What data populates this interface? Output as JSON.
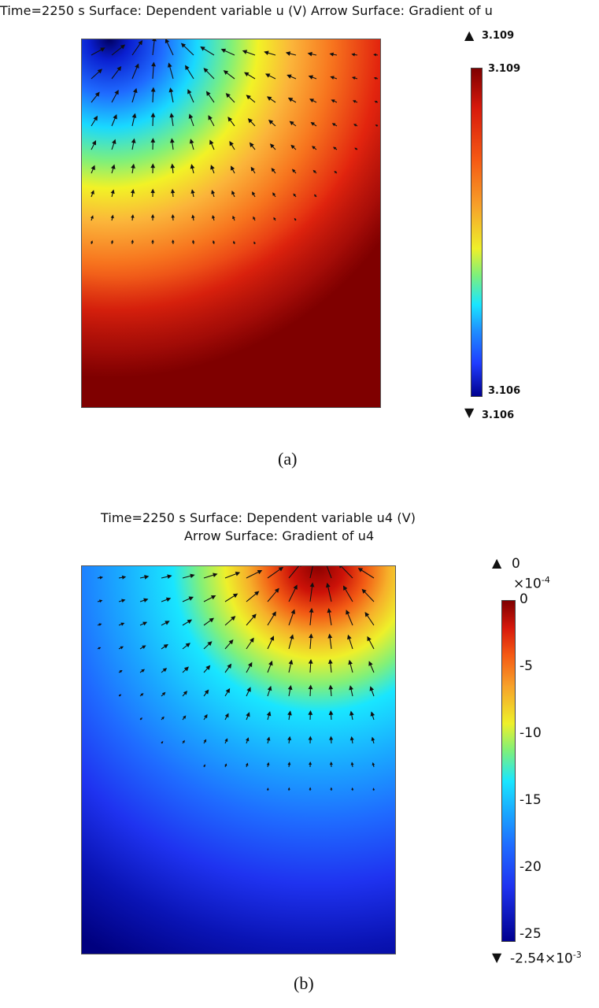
{
  "panel_a": {
    "title": "Time=2250 s   Surface: Dependent variable u (V)   Arrow Surface: Gradient of u",
    "caption": "(a)",
    "max_marker": "3.109",
    "min_marker": "3.106",
    "colorbar_top": "3.109",
    "colorbar_bottom": "3.106",
    "arrow_up_icon": "triangle-up",
    "arrow_down_icon": "triangle-down"
  },
  "panel_b": {
    "title_line1": "Time=2250 s   Surface: Dependent variable u4 (V)",
    "title_line2": "Arrow Surface: Gradient of u4",
    "caption": "(b)",
    "max_marker": "0",
    "multiplier": "×10",
    "multiplier_exp": "-4",
    "min_marker": "-2.54×10",
    "min_marker_exp": "-3",
    "colorbar_ticks": [
      "0",
      "-5",
      "-10",
      "-15",
      "-20",
      "-25"
    ]
  },
  "chart_data": [
    {
      "type": "heatmap",
      "title": "Time=2250 s   Surface: Dependent variable u (V)   Arrow Surface: Gradient of u",
      "colormap": "rainbow (blue→cyan→yellow→red→dark red)",
      "colorbar_range": [
        3.106,
        3.109
      ],
      "max": 3.109,
      "min": 3.106,
      "field_description": "low values concentrated at top-left near boundary, increasing radially to maximum at bottom",
      "arrows": "gradient arrows pointing toward top-left source"
    },
    {
      "type": "heatmap",
      "title": "Time=2250 s   Surface: Dependent variable u4 (V)   Arrow Surface: Gradient of u4",
      "colormap": "rainbow (blue→cyan→yellow→red→dark red)",
      "colorbar_ticks": [
        0,
        -5,
        -10,
        -15,
        -20,
        -25
      ],
      "colorbar_multiplier": "1e-4",
      "max": 0,
      "min": -0.00254,
      "field_description": "high values at top-right near boundary, decreasing to minimum at bottom",
      "arrows": "gradient arrows pointing toward top-right source"
    }
  ],
  "colors": {
    "dark_red": "#7f0000",
    "red": "#e8220a",
    "orange": "#f7931e",
    "yellow": "#f5f52a",
    "cyan": "#19e6ff",
    "blue": "#1f4fff",
    "dark_blue": "#00008f"
  }
}
